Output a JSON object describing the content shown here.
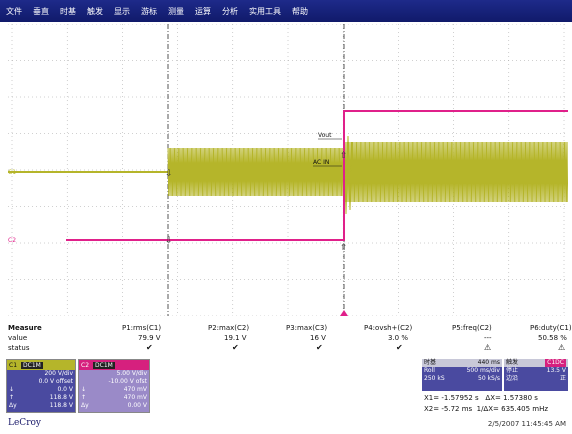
{
  "menu": [
    "文件",
    "垂直",
    "时基",
    "触发",
    "显示",
    "游标",
    "测量",
    "运算",
    "分析",
    "实用工具",
    "帮助"
  ],
  "scope": {
    "channel_labels": {
      "c1": "C1",
      "c2": "C2"
    },
    "annotations": {
      "vout": "Vout",
      "acin": "AC IN"
    },
    "colors": {
      "c1": "#b5b52a",
      "c2": "#e0208a",
      "grid": "#9a9a9a",
      "cursor": "#555555"
    }
  },
  "measure": {
    "title": "Measure",
    "row_labels": [
      "value",
      "status"
    ],
    "params": [
      {
        "name": "P1:rms(C1)",
        "value": "79.9 V",
        "status": "✔"
      },
      {
        "name": "P2:max(C2)",
        "value": "19.1 V",
        "status": "✔"
      },
      {
        "name": "P3:max(C3)",
        "value": "16 V",
        "status": "✔"
      },
      {
        "name": "P4:ovsh+(C2)",
        "value": "3.0 %",
        "status": "✔"
      },
      {
        "name": "P5:freq(C2)",
        "value": "---",
        "status": "⚠"
      },
      {
        "name": "P6:duty(C1)",
        "value": "50.58 %",
        "status": "⚠"
      }
    ]
  },
  "c1": {
    "label": "C1",
    "tag": "DC1M",
    "rows": [
      [
        "",
        "200 V/div"
      ],
      [
        "",
        "0.0 V offset"
      ],
      [
        "↓",
        "0.0 V"
      ],
      [
        "↑",
        "118.8 V"
      ],
      [
        "Δy",
        "118.8 V"
      ]
    ]
  },
  "c2": {
    "label": "C2",
    "tag": "DC1M",
    "rows": [
      [
        "",
        "5.00 V/div"
      ],
      [
        "",
        "-10.00 V ofst"
      ],
      [
        "↓",
        "470 mV"
      ],
      [
        "↑",
        "470 mV"
      ],
      [
        "Δy",
        "0.00 V"
      ]
    ]
  },
  "timebase": {
    "title": "时基",
    "value": "440 ms",
    "rows": [
      [
        "Roll",
        "500 ms/div"
      ],
      [
        "250 kS",
        "50 kS/s"
      ]
    ]
  },
  "trigger": {
    "title": "触发",
    "tag": "C1DC",
    "rows": [
      [
        "停止",
        "13.5 V"
      ],
      [
        "边沿",
        "正"
      ]
    ]
  },
  "cursors": {
    "x1_label": "X1=",
    "x1": "-1.57952 s",
    "dx_label": "ΔX=",
    "dx": "1.57380 s",
    "x2_label": "X2=",
    "x2": "-5.72 ms",
    "inv_dx_label": "1/ΔX=",
    "inv_dx": "635.405 mHz"
  },
  "brand": "LeCroy",
  "datetime": "2/5/2007 11:45:45 AM"
}
